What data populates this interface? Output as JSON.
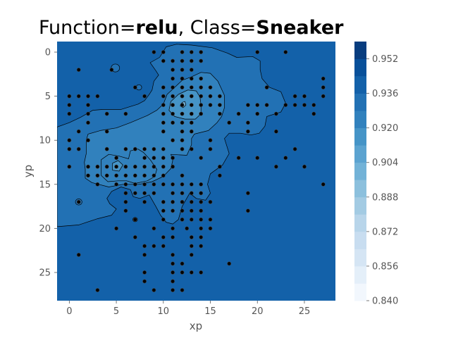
{
  "title": {
    "prefix": "Function=",
    "function_name": "relu",
    "separator": ", Class=",
    "class_name": "Sneaker"
  },
  "chart_data": {
    "type": "heatmap",
    "subtype": "filled-contour-with-scatter",
    "xlabel": "xp",
    "ylabel": "yp",
    "x_ticks": [
      0,
      5,
      10,
      15,
      20,
      25
    ],
    "y_ticks": [
      0,
      5,
      10,
      15,
      20,
      25
    ],
    "xlim": [
      -1.3,
      28.3
    ],
    "ylim": [
      28.2,
      -1.2
    ],
    "y_inverted": true,
    "colormap": "Blues",
    "colorbar": {
      "min": 0.84,
      "max": 0.96,
      "ticks": [
        "0.840",
        "0.856",
        "0.872",
        "0.888",
        "0.904",
        "0.920",
        "0.936",
        "0.952"
      ],
      "levels": [
        0.84,
        0.848,
        0.856,
        0.864,
        0.872,
        0.88,
        0.888,
        0.896,
        0.904,
        0.912,
        0.92,
        0.928,
        0.936,
        0.944,
        0.952,
        0.96
      ],
      "colors": [
        "#f2f7fd",
        "#e4eff9",
        "#d5e5f4",
        "#c8ddf0",
        "#b8d5ea",
        "#a3cbe3",
        "#8cc0dd",
        "#72b2d7",
        "#5ba3d0",
        "#4594c7",
        "#3181bd",
        "#2271b4",
        "#1361a9",
        "#08509a",
        "#083d7f"
      ]
    },
    "regions": [
      {
        "value": 0.94,
        "shape": "background"
      },
      {
        "value": 0.928,
        "shape": "main-lobe"
      },
      {
        "value": 0.92,
        "shape": "center-lobe"
      },
      {
        "value": 0.912,
        "shape": "core-ring"
      },
      {
        "value": 0.9,
        "shape": "core"
      },
      {
        "value": 0.92,
        "shape": "lower-left-lobe"
      },
      {
        "value": 0.912,
        "shape": "lower-left-ring"
      }
    ],
    "points": [
      [
        9,
        0
      ],
      [
        10,
        0
      ],
      [
        12,
        0
      ],
      [
        13,
        0
      ],
      [
        14,
        0
      ],
      [
        20,
        0
      ],
      [
        23,
        0
      ],
      [
        10,
        1
      ],
      [
        11,
        1
      ],
      [
        12,
        1
      ],
      [
        13,
        1
      ],
      [
        14,
        1
      ],
      [
        1,
        2
      ],
      [
        4.5,
        2
      ],
      [
        11,
        2
      ],
      [
        12,
        2
      ],
      [
        13,
        2
      ],
      [
        11,
        3
      ],
      [
        12,
        3
      ],
      [
        13,
        3
      ],
      [
        14,
        3
      ],
      [
        27,
        3
      ],
      [
        7,
        4
      ],
      [
        10,
        4
      ],
      [
        11,
        4
      ],
      [
        12,
        4
      ],
      [
        13,
        4
      ],
      [
        14,
        4
      ],
      [
        15,
        4
      ],
      [
        21,
        4
      ],
      [
        27,
        4
      ],
      [
        0,
        5
      ],
      [
        1,
        5
      ],
      [
        2,
        5
      ],
      [
        3,
        5
      ],
      [
        8,
        5
      ],
      [
        10,
        5
      ],
      [
        11,
        5
      ],
      [
        12,
        5
      ],
      [
        13,
        5
      ],
      [
        14,
        5
      ],
      [
        15,
        5
      ],
      [
        16,
        5
      ],
      [
        24,
        5
      ],
      [
        25,
        5
      ],
      [
        27,
        5
      ],
      [
        0,
        6
      ],
      [
        2,
        6
      ],
      [
        10,
        6
      ],
      [
        11,
        6
      ],
      [
        12,
        6
      ],
      [
        13,
        6
      ],
      [
        14,
        6
      ],
      [
        15,
        6
      ],
      [
        16,
        6
      ],
      [
        19,
        6
      ],
      [
        20,
        6
      ],
      [
        21,
        6
      ],
      [
        23,
        6
      ],
      [
        24,
        6
      ],
      [
        25,
        6
      ],
      [
        26,
        6
      ],
      [
        0,
        7
      ],
      [
        2,
        7
      ],
      [
        4,
        7
      ],
      [
        6,
        7
      ],
      [
        10,
        7
      ],
      [
        11,
        7
      ],
      [
        12,
        7
      ],
      [
        13,
        7
      ],
      [
        14,
        7
      ],
      [
        16,
        7
      ],
      [
        18,
        7
      ],
      [
        20,
        7
      ],
      [
        22,
        7
      ],
      [
        26,
        7
      ],
      [
        2,
        8
      ],
      [
        10,
        8
      ],
      [
        11,
        8
      ],
      [
        12,
        8
      ],
      [
        13,
        8
      ],
      [
        17,
        8
      ],
      [
        19,
        8
      ],
      [
        1,
        9
      ],
      [
        4,
        9
      ],
      [
        10,
        9
      ],
      [
        12,
        9
      ],
      [
        13,
        9
      ],
      [
        19,
        9
      ],
      [
        22,
        9
      ],
      [
        0,
        10
      ],
      [
        2,
        10
      ],
      [
        11,
        10
      ],
      [
        12,
        10
      ],
      [
        15,
        10
      ],
      [
        0,
        11
      ],
      [
        1,
        11
      ],
      [
        4,
        11
      ],
      [
        6,
        11
      ],
      [
        7,
        11
      ],
      [
        8,
        11
      ],
      [
        9,
        11
      ],
      [
        10,
        11
      ],
      [
        12,
        11
      ],
      [
        13,
        11
      ],
      [
        15,
        11
      ],
      [
        24,
        11
      ],
      [
        5,
        12
      ],
      [
        8,
        12
      ],
      [
        9,
        12
      ],
      [
        10,
        12
      ],
      [
        11,
        12
      ],
      [
        14,
        12
      ],
      [
        18,
        12
      ],
      [
        20,
        12
      ],
      [
        23,
        12
      ],
      [
        0,
        13
      ],
      [
        2,
        13
      ],
      [
        3,
        13
      ],
      [
        4,
        13
      ],
      [
        5,
        13
      ],
      [
        6,
        13
      ],
      [
        7,
        13
      ],
      [
        8,
        13
      ],
      [
        9,
        13
      ],
      [
        10,
        13
      ],
      [
        11,
        13
      ],
      [
        16,
        13
      ],
      [
        22,
        13
      ],
      [
        25,
        13
      ],
      [
        2,
        14
      ],
      [
        3,
        14
      ],
      [
        4,
        14
      ],
      [
        5,
        14
      ],
      [
        6,
        14
      ],
      [
        7,
        14
      ],
      [
        8,
        14
      ],
      [
        9,
        14
      ],
      [
        10,
        14
      ],
      [
        12,
        14
      ],
      [
        16,
        14
      ],
      [
        3,
        15
      ],
      [
        5,
        15
      ],
      [
        6,
        15
      ],
      [
        7,
        15
      ],
      [
        8,
        15
      ],
      [
        9,
        15
      ],
      [
        10,
        15
      ],
      [
        11,
        15
      ],
      [
        12,
        15
      ],
      [
        13,
        15
      ],
      [
        14,
        15
      ],
      [
        27,
        15
      ],
      [
        6,
        16
      ],
      [
        7,
        16
      ],
      [
        8,
        16
      ],
      [
        9,
        16
      ],
      [
        11,
        16
      ],
      [
        12,
        16
      ],
      [
        13,
        16
      ],
      [
        14,
        16
      ],
      [
        19,
        16
      ],
      [
        1,
        17
      ],
      [
        6,
        17
      ],
      [
        8,
        17
      ],
      [
        10,
        17
      ],
      [
        11,
        17
      ],
      [
        12,
        17
      ],
      [
        13,
        17
      ],
      [
        14,
        17
      ],
      [
        15,
        17
      ],
      [
        6,
        18
      ],
      [
        10,
        18
      ],
      [
        11,
        18
      ],
      [
        12,
        18
      ],
      [
        13,
        18
      ],
      [
        14,
        18
      ],
      [
        19,
        18
      ],
      [
        7,
        19
      ],
      [
        10,
        19
      ],
      [
        12,
        19
      ],
      [
        13,
        19
      ],
      [
        14,
        19
      ],
      [
        15,
        19
      ],
      [
        5,
        20
      ],
      [
        9,
        20
      ],
      [
        11,
        20
      ],
      [
        12.5,
        20
      ],
      [
        14,
        20
      ],
      [
        15,
        20
      ],
      [
        7,
        21
      ],
      [
        10,
        21
      ],
      [
        11,
        21
      ],
      [
        13,
        21
      ],
      [
        14,
        21
      ],
      [
        8,
        22
      ],
      [
        9,
        22
      ],
      [
        10,
        22
      ],
      [
        13,
        22
      ],
      [
        14,
        22
      ],
      [
        1,
        23
      ],
      [
        8,
        23
      ],
      [
        11,
        23
      ],
      [
        13,
        23
      ],
      [
        11,
        24
      ],
      [
        12,
        24
      ],
      [
        17,
        24
      ],
      [
        8,
        25
      ],
      [
        11,
        25
      ],
      [
        12,
        25
      ],
      [
        13,
        25
      ],
      [
        14,
        25
      ],
      [
        8,
        26
      ],
      [
        11,
        26
      ],
      [
        3,
        27
      ],
      [
        9,
        27
      ],
      [
        11,
        27
      ],
      [
        12,
        27
      ]
    ]
  }
}
